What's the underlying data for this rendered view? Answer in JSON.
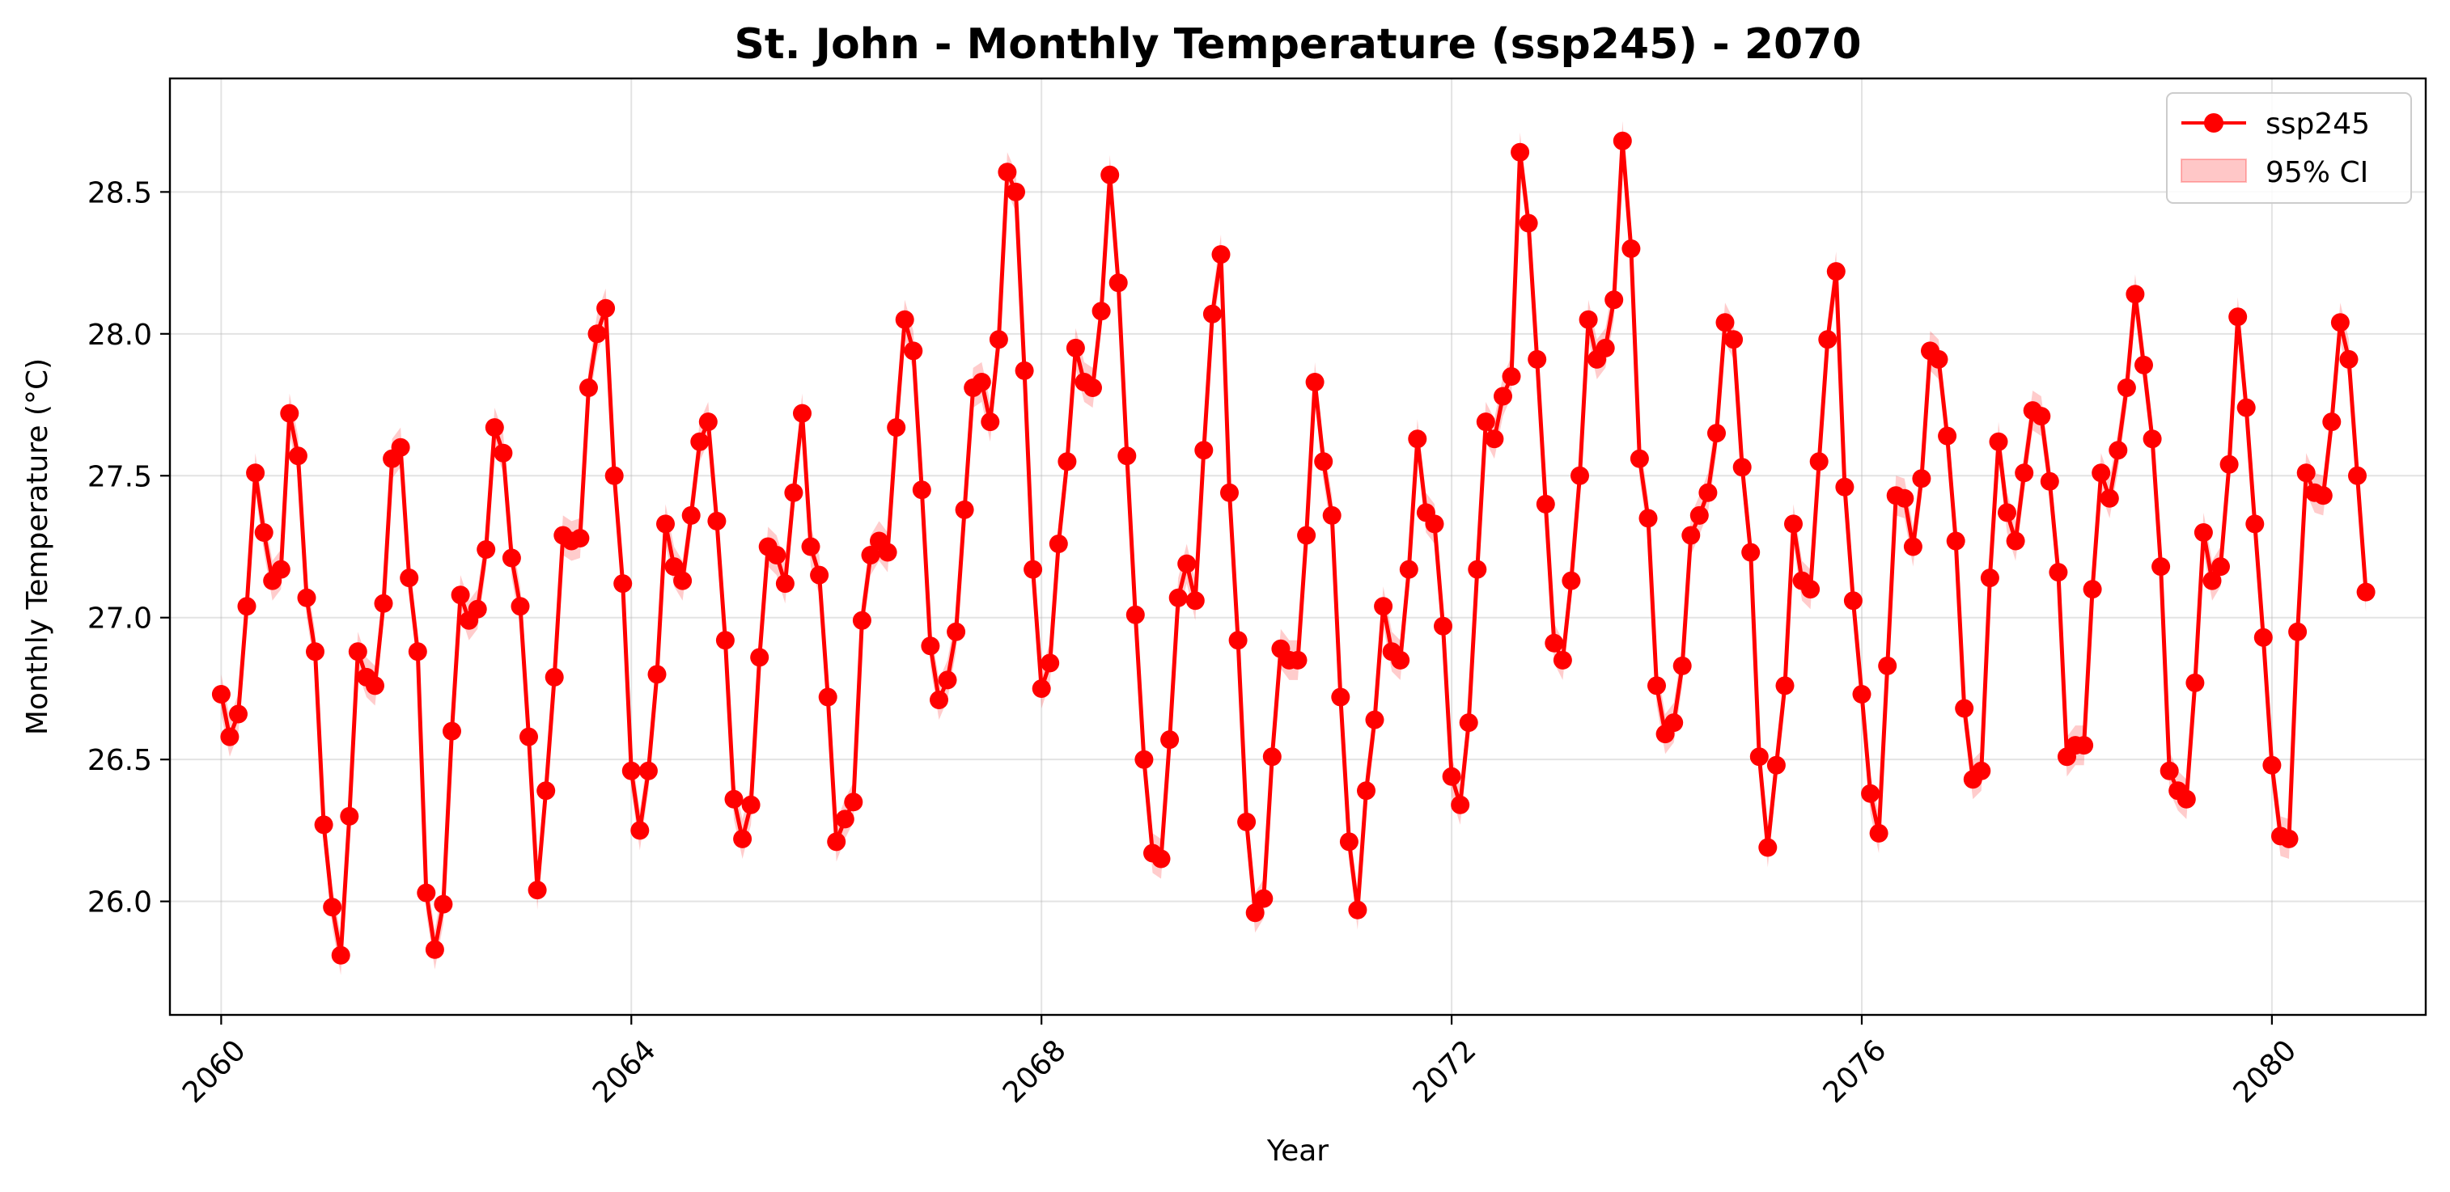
{
  "chart_data": {
    "type": "line",
    "title": "St. John - Monthly Temperature (ssp245) - 2070",
    "xlabel": "Year",
    "ylabel": "Monthly Temperature (°C)",
    "xlim": [
      2059.5,
      2081.5
    ],
    "ylim": [
      25.6,
      28.9
    ],
    "x_ticks": [
      2060,
      2064,
      2068,
      2072,
      2076,
      2080
    ],
    "y_ticks": [
      26.0,
      26.5,
      27.0,
      27.5,
      28.0,
      28.5
    ],
    "y_tick_labels": [
      "26.0",
      "26.5",
      "27.0",
      "27.5",
      "28.0",
      "28.5"
    ],
    "x_start": 2060,
    "x_step_months": 1,
    "grid": true,
    "legend_position": "top-right",
    "ci_half_width": 0.07,
    "series": [
      {
        "name": "ssp245",
        "color": "#ff0000",
        "values": [
          26.73,
          26.58,
          26.66,
          27.04,
          27.51,
          27.3,
          27.13,
          27.17,
          27.72,
          27.57,
          27.07,
          26.88,
          26.27,
          25.98,
          25.81,
          26.3,
          26.88,
          26.79,
          26.76,
          27.05,
          27.56,
          27.6,
          27.14,
          26.88,
          26.03,
          25.83,
          25.99,
          26.6,
          27.08,
          26.99,
          27.03,
          27.24,
          27.67,
          27.58,
          27.21,
          27.04,
          26.58,
          26.04,
          26.39,
          26.79,
          27.29,
          27.27,
          27.28,
          27.81,
          28.0,
          28.09,
          27.5,
          27.12,
          26.46,
          26.25,
          26.46,
          26.8,
          27.33,
          27.18,
          27.13,
          27.36,
          27.62,
          27.69,
          27.34,
          26.92,
          26.36,
          26.22,
          26.34,
          26.86,
          27.25,
          27.22,
          27.12,
          27.44,
          27.72,
          27.25,
          27.15,
          26.72,
          26.21,
          26.29,
          26.35,
          26.99,
          27.22,
          27.27,
          27.23,
          27.67,
          28.05,
          27.94,
          27.45,
          26.9,
          26.71,
          26.78,
          26.95,
          27.38,
          27.81,
          27.83,
          27.69,
          27.98,
          28.57,
          28.5,
          27.87,
          27.17,
          26.75,
          26.84,
          27.26,
          27.55,
          27.95,
          27.83,
          27.81,
          28.08,
          28.56,
          28.18,
          27.57,
          27.01,
          26.5,
          26.17,
          26.15,
          26.57,
          27.07,
          27.19,
          27.06,
          27.59,
          28.07,
          28.28,
          27.44,
          26.92,
          26.28,
          25.96,
          26.01,
          26.51,
          26.89,
          26.85,
          26.85,
          27.29,
          27.83,
          27.55,
          27.36,
          26.72,
          26.21,
          25.97,
          26.39,
          26.64,
          27.04,
          26.88,
          26.85,
          27.17,
          27.63,
          27.37,
          27.33,
          26.97,
          26.44,
          26.34,
          26.63,
          27.17,
          27.69,
          27.63,
          27.78,
          27.85,
          28.64,
          28.39,
          27.91,
          27.4,
          26.91,
          26.85,
          27.13,
          27.5,
          28.05,
          27.91,
          27.95,
          28.12,
          28.68,
          28.3,
          27.56,
          27.35,
          26.76,
          26.59,
          26.63,
          26.83,
          27.29,
          27.36,
          27.44,
          27.65,
          28.04,
          27.98,
          27.53,
          27.23,
          26.51,
          26.19,
          26.48,
          26.76,
          27.33,
          27.13,
          27.1,
          27.55,
          27.98,
          28.22,
          27.46,
          27.06,
          26.73,
          26.38,
          26.24,
          26.83,
          27.43,
          27.42,
          27.25,
          27.49,
          27.94,
          27.91,
          27.64,
          27.27,
          26.68,
          26.43,
          26.46,
          27.14,
          27.62,
          27.37,
          27.27,
          27.51,
          27.73,
          27.71,
          27.48,
          27.16,
          26.51,
          26.55,
          26.55,
          27.1,
          27.51,
          27.42,
          27.59,
          27.81,
          28.14,
          27.89,
          27.63,
          27.18,
          26.46,
          26.39,
          26.36,
          26.77,
          27.3,
          27.13,
          27.18,
          27.54,
          28.06,
          27.74,
          27.33,
          26.93,
          26.48,
          26.23,
          26.22,
          26.95,
          27.51,
          27.44,
          27.43,
          27.69,
          28.04,
          27.91,
          27.5,
          27.09
        ]
      }
    ],
    "legend": [
      {
        "label": "ssp245",
        "kind": "line-marker",
        "color": "#ff0000"
      },
      {
        "label": "95% CI",
        "kind": "patch",
        "color": "#ff9999"
      }
    ]
  }
}
